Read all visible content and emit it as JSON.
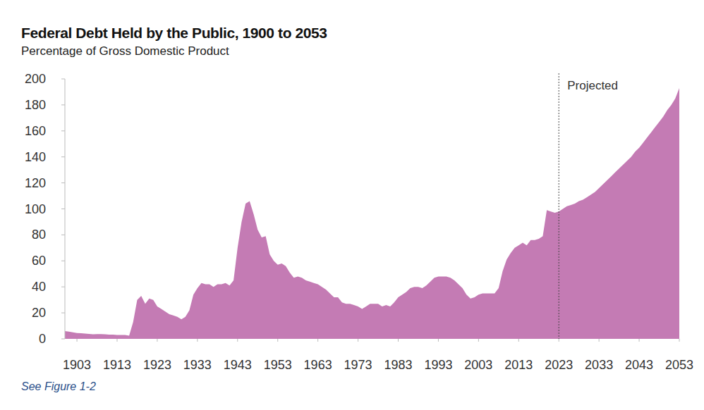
{
  "chart_data": {
    "type": "area",
    "title": "Federal Debt Held by the Public, 1900 to 2053",
    "subtitle": "Percentage of Gross Domestic Product",
    "footnote": "See Figure 1-2",
    "color": "#c47bb4",
    "grid": false,
    "xlim": [
      1900,
      2053
    ],
    "xticks": [
      1903,
      1913,
      1923,
      1933,
      1943,
      1953,
      1963,
      1973,
      1983,
      1993,
      2003,
      2013,
      2023,
      2033,
      2043,
      2053
    ],
    "ylim": [
      0,
      200
    ],
    "yticks": [
      0,
      20,
      40,
      60,
      80,
      100,
      120,
      140,
      160,
      180,
      200
    ],
    "annotations": [
      {
        "text": "Projected",
        "x": 2023
      }
    ],
    "x": [
      1900,
      1901,
      1902,
      1903,
      1904,
      1905,
      1906,
      1907,
      1908,
      1909,
      1910,
      1911,
      1912,
      1913,
      1914,
      1915,
      1916,
      1917,
      1918,
      1919,
      1920,
      1921,
      1922,
      1923,
      1924,
      1925,
      1926,
      1927,
      1928,
      1929,
      1930,
      1931,
      1932,
      1933,
      1934,
      1935,
      1936,
      1937,
      1938,
      1939,
      1940,
      1941,
      1942,
      1943,
      1944,
      1945,
      1946,
      1947,
      1948,
      1949,
      1950,
      1951,
      1952,
      1953,
      1954,
      1955,
      1956,
      1957,
      1958,
      1959,
      1960,
      1961,
      1962,
      1963,
      1964,
      1965,
      1966,
      1967,
      1968,
      1969,
      1970,
      1971,
      1972,
      1973,
      1974,
      1975,
      1976,
      1977,
      1978,
      1979,
      1980,
      1981,
      1982,
      1983,
      1984,
      1985,
      1986,
      1987,
      1988,
      1989,
      1990,
      1991,
      1992,
      1993,
      1994,
      1995,
      1996,
      1997,
      1998,
      1999,
      2000,
      2001,
      2002,
      2003,
      2004,
      2005,
      2006,
      2007,
      2008,
      2009,
      2010,
      2011,
      2012,
      2013,
      2014,
      2015,
      2016,
      2017,
      2018,
      2019,
      2020,
      2021,
      2022,
      2023,
      2024,
      2025,
      2026,
      2027,
      2028,
      2029,
      2030,
      2031,
      2032,
      2033,
      2034,
      2035,
      2036,
      2037,
      2038,
      2039,
      2040,
      2041,
      2042,
      2043,
      2044,
      2045,
      2046,
      2047,
      2048,
      2049,
      2050,
      2051,
      2052,
      2053
    ],
    "values": [
      6,
      5.5,
      5,
      4.5,
      4.3,
      4,
      3.8,
      3.5,
      3.7,
      3.7,
      3.5,
      3.3,
      3.2,
      3,
      3,
      3,
      2.5,
      13,
      30,
      33,
      27,
      31,
      30,
      25,
      23,
      21,
      19,
      18,
      17,
      15,
      17,
      22,
      34,
      39,
      43,
      42,
      42,
      40,
      42,
      42,
      43,
      41,
      45,
      70,
      90,
      104,
      106,
      96,
      84,
      78,
      79,
      65,
      60,
      57,
      58,
      56,
      51,
      47,
      48,
      47,
      45,
      44,
      43,
      42,
      40,
      38,
      35,
      32,
      32,
      28,
      27,
      27,
      26,
      25,
      23,
      25,
      27,
      27,
      27,
      25,
      26,
      25,
      28,
      32,
      34,
      36,
      39,
      40,
      40,
      39,
      41,
      44,
      47,
      48,
      48,
      48,
      47,
      45,
      42,
      39,
      34,
      31,
      32,
      34,
      35,
      35,
      35,
      35,
      39,
      52,
      61,
      66,
      70,
      72,
      74,
      72,
      76,
      76,
      77,
      79,
      99,
      98,
      97,
      98,
      100,
      102,
      103,
      104,
      106,
      107,
      109,
      111,
      113,
      116,
      119,
      122,
      125,
      128,
      131,
      134,
      137,
      140,
      144,
      147,
      151,
      155,
      159,
      163,
      167,
      171,
      176,
      180,
      185,
      193
    ]
  }
}
